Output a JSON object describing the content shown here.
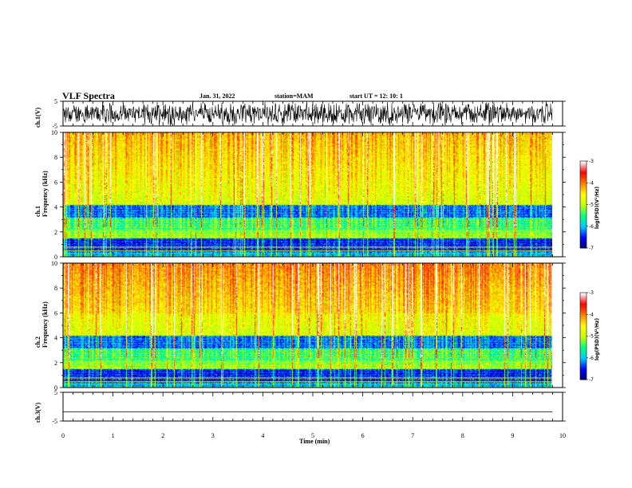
{
  "header": {
    "title": "VLF Spectra",
    "date": "Jan. 31, 2022",
    "station": "station=MAM",
    "start_ut": "start  UT =   12: 10: 1"
  },
  "chart_data": [
    {
      "type": "line",
      "name": "ch1-waveform",
      "ylabel": "ch.1(V)",
      "ylim": [
        -5,
        5
      ],
      "yticks": [
        "5",
        "-5"
      ],
      "xlim": [
        0,
        10
      ],
      "note_saturated": true
    },
    {
      "type": "heatmap",
      "name": "ch1-spectrogram",
      "ylabel": "ch.1\nFrequency (kHz)",
      "ylim": [
        0,
        10
      ],
      "yticks": [
        "0",
        "2",
        "4",
        "6",
        "8",
        "10"
      ],
      "xlim": [
        0,
        10
      ],
      "colorbar": {
        "range": [
          -7,
          -3
        ],
        "ticks": [
          "-3",
          "-4",
          "-5",
          "-6",
          "-7"
        ],
        "label": "log(PSD)(V²/Hz)"
      }
    },
    {
      "type": "heatmap",
      "name": "ch2-spectrogram",
      "ylabel": "ch.2\nFrequency (kHz)",
      "ylim": [
        0,
        10
      ],
      "yticks": [
        "0",
        "2",
        "4",
        "6",
        "8",
        "10"
      ],
      "xlim": [
        0,
        10
      ],
      "colorbar": {
        "range": [
          -7,
          -3
        ],
        "ticks": [
          "-3",
          "-4",
          "-5",
          "-6",
          "-7"
        ],
        "label": "log(PSD)(V²/Hz)"
      }
    },
    {
      "type": "line",
      "name": "ch3-waveform",
      "ylabel": "ch.3(V)",
      "ylim": [
        -5,
        5
      ],
      "yticks": [
        "5",
        "-5"
      ],
      "xlim": [
        0,
        10
      ],
      "series": [
        {
          "x": [
            0,
            9.8
          ],
          "y": [
            -1.8,
            -1.8
          ]
        }
      ]
    }
  ],
  "xaxis": {
    "label": "Time (min)",
    "ticks": [
      "0",
      "1",
      "2",
      "3",
      "4",
      "5",
      "6",
      "7",
      "8",
      "9",
      "10"
    ],
    "data_end": 9.8
  },
  "colors": {
    "colormap": [
      "#000070",
      "#0000ff",
      "#00c8ff",
      "#00ff80",
      "#c8ff00",
      "#ffff00",
      "#ff8000",
      "#ff0000",
      "#ffffff"
    ]
  }
}
